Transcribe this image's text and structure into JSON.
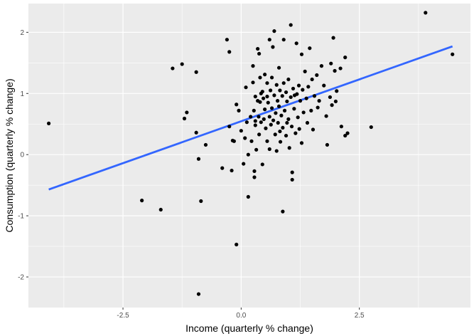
{
  "chart_data": {
    "type": "scatter",
    "xlabel": "Income (quarterly % change)",
    "ylabel": "Consumption (quarterly % change)",
    "xlim": [
      -4.5,
      4.85
    ],
    "ylim": [
      -2.5,
      2.47
    ],
    "x_ticks": [
      -2.5,
      0.0,
      2.5
    ],
    "x_tick_labels": [
      "-2.5",
      "0.0",
      "2.5"
    ],
    "y_ticks": [
      -2,
      -1,
      0,
      1,
      2
    ],
    "y_tick_labels": [
      "-2",
      "-1",
      "0",
      "1",
      "2"
    ],
    "grid": true,
    "colors": {
      "panel": "#ebebeb",
      "grid": "#ffffff",
      "points": "#000000",
      "fit_line": "#3366ff"
    },
    "fit_line": {
      "x": [
        -4.07,
        4.47
      ],
      "y": [
        -0.57,
        1.77
      ]
    },
    "points": [
      {
        "x": -4.07,
        "y": 0.51
      },
      {
        "x": -2.1,
        "y": -0.75
      },
      {
        "x": -1.7,
        "y": -0.9
      },
      {
        "x": -1.45,
        "y": 1.41
      },
      {
        "x": -1.25,
        "y": 1.48
      },
      {
        "x": -1.15,
        "y": 0.69
      },
      {
        "x": -1.2,
        "y": 0.59
      },
      {
        "x": -0.95,
        "y": 1.35
      },
      {
        "x": -0.95,
        "y": 0.36
      },
      {
        "x": -0.9,
        "y": -0.07
      },
      {
        "x": -0.85,
        "y": -0.76
      },
      {
        "x": -0.9,
        "y": -2.28
      },
      {
        "x": -0.75,
        "y": 0.16
      },
      {
        "x": -0.4,
        "y": -0.22
      },
      {
        "x": -0.3,
        "y": 1.88
      },
      {
        "x": -0.25,
        "y": 1.68
      },
      {
        "x": -0.25,
        "y": 0.46
      },
      {
        "x": -0.2,
        "y": -0.26
      },
      {
        "x": -0.18,
        "y": 0.23
      },
      {
        "x": -0.15,
        "y": 0.22
      },
      {
        "x": -0.1,
        "y": 0.82
      },
      {
        "x": -0.1,
        "y": -1.47
      },
      {
        "x": -0.05,
        "y": 0.72
      },
      {
        "x": 0.0,
        "y": 0.39
      },
      {
        "x": 0.05,
        "y": -0.15
      },
      {
        "x": 0.08,
        "y": 0.27
      },
      {
        "x": 0.1,
        "y": 1.1
      },
      {
        "x": 0.12,
        "y": 0.53
      },
      {
        "x": 0.15,
        "y": -0.0
      },
      {
        "x": 0.15,
        "y": -0.69
      },
      {
        "x": 0.2,
        "y": 0.62
      },
      {
        "x": 0.22,
        "y": 0.22
      },
      {
        "x": 0.25,
        "y": 1.45
      },
      {
        "x": 0.25,
        "y": 1.18
      },
      {
        "x": 0.27,
        "y": 0.72
      },
      {
        "x": 0.28,
        "y": -0.27
      },
      {
        "x": 0.28,
        "y": -0.37
      },
      {
        "x": 0.3,
        "y": 0.95
      },
      {
        "x": 0.3,
        "y": 0.48
      },
      {
        "x": 0.32,
        "y": 0.08
      },
      {
        "x": 0.35,
        "y": 1.73
      },
      {
        "x": 0.35,
        "y": 0.88
      },
      {
        "x": 0.37,
        "y": 0.62
      },
      {
        "x": 0.38,
        "y": 0.33
      },
      {
        "x": 0.4,
        "y": 1.26
      },
      {
        "x": 0.4,
        "y": 0.86
      },
      {
        "x": 0.42,
        "y": 0.53
      },
      {
        "x": 0.45,
        "y": 1.03
      },
      {
        "x": 0.45,
        "y": -0.16
      },
      {
        "x": 0.47,
        "y": 0.92
      },
      {
        "x": 0.48,
        "y": 0.58
      },
      {
        "x": 0.5,
        "y": 1.31
      },
      {
        "x": 0.5,
        "y": 0.74
      },
      {
        "x": 0.52,
        "y": 0.43
      },
      {
        "x": 0.55,
        "y": 1.17
      },
      {
        "x": 0.55,
        "y": 0.22
      },
      {
        "x": 0.57,
        "y": 0.85
      },
      {
        "x": 0.6,
        "y": 0.62
      },
      {
        "x": 0.6,
        "y": 0.09
      },
      {
        "x": 0.62,
        "y": 1.05
      },
      {
        "x": 0.63,
        "y": 0.49
      },
      {
        "x": 0.65,
        "y": 1.26
      },
      {
        "x": 0.65,
        "y": 0.76
      },
      {
        "x": 0.67,
        "y": 1.76
      },
      {
        "x": 0.7,
        "y": 2.02
      },
      {
        "x": 0.7,
        "y": 0.97
      },
      {
        "x": 0.72,
        "y": 0.33
      },
      {
        "x": 0.73,
        "y": 0.68
      },
      {
        "x": 0.75,
        "y": 1.14
      },
      {
        "x": 0.75,
        "y": 0.06
      },
      {
        "x": 0.77,
        "y": 0.88
      },
      {
        "x": 0.78,
        "y": 0.52
      },
      {
        "x": 0.8,
        "y": 1.42
      },
      {
        "x": 0.8,
        "y": 0.79
      },
      {
        "x": 0.82,
        "y": 1.05
      },
      {
        "x": 0.83,
        "y": 0.21
      },
      {
        "x": 0.85,
        "y": 0.64
      },
      {
        "x": 0.87,
        "y": 0.96
      },
      {
        "x": 0.88,
        "y": 0.44
      },
      {
        "x": 0.88,
        "y": -0.93
      },
      {
        "x": 0.9,
        "y": 1.88
      },
      {
        "x": 0.9,
        "y": 1.17
      },
      {
        "x": 0.92,
        "y": 0.72
      },
      {
        "x": 0.95,
        "y": 1.02
      },
      {
        "x": 0.95,
        "y": 0.31
      },
      {
        "x": 0.97,
        "y": 0.87
      },
      {
        "x": 1.0,
        "y": 1.23
      },
      {
        "x": 1.0,
        "y": 0.58
      },
      {
        "x": 1.02,
        "y": 0.11
      },
      {
        "x": 1.05,
        "y": 2.12
      },
      {
        "x": 1.05,
        "y": 0.94
      },
      {
        "x": 1.07,
        "y": 0.46
      },
      {
        "x": 1.08,
        "y": -0.29
      },
      {
        "x": 1.08,
        "y": -0.41
      },
      {
        "x": 1.1,
        "y": 1.08
      },
      {
        "x": 1.12,
        "y": 0.75
      },
      {
        "x": 1.15,
        "y": 0.35
      },
      {
        "x": 1.17,
        "y": 1.82
      },
      {
        "x": 1.18,
        "y": 0.99
      },
      {
        "x": 1.2,
        "y": 0.61
      },
      {
        "x": 1.22,
        "y": 1.13
      },
      {
        "x": 1.25,
        "y": 0.88
      },
      {
        "x": 1.28,
        "y": 1.64
      },
      {
        "x": 1.28,
        "y": 0.19
      },
      {
        "x": 1.3,
        "y": 1.06
      },
      {
        "x": 1.32,
        "y": 0.69
      },
      {
        "x": 1.35,
        "y": 1.36
      },
      {
        "x": 1.38,
        "y": 0.92
      },
      {
        "x": 1.4,
        "y": 0.52
      },
      {
        "x": 1.42,
        "y": 1.11
      },
      {
        "x": 1.45,
        "y": 1.74
      },
      {
        "x": 1.48,
        "y": 0.72
      },
      {
        "x": 1.5,
        "y": 1.23
      },
      {
        "x": 1.52,
        "y": 0.41
      },
      {
        "x": 1.55,
        "y": 0.96
      },
      {
        "x": 1.6,
        "y": 1.3
      },
      {
        "x": 1.62,
        "y": 0.77
      },
      {
        "x": 1.65,
        "y": 0.88
      },
      {
        "x": 1.7,
        "y": 1.45
      },
      {
        "x": 1.75,
        "y": 1.13
      },
      {
        "x": 1.8,
        "y": 0.63
      },
      {
        "x": 1.82,
        "y": 0.16
      },
      {
        "x": 1.88,
        "y": 0.94
      },
      {
        "x": 1.9,
        "y": 1.49
      },
      {
        "x": 1.92,
        "y": 0.81
      },
      {
        "x": 1.95,
        "y": 1.91
      },
      {
        "x": 1.98,
        "y": 1.37
      },
      {
        "x": 2.0,
        "y": 0.87
      },
      {
        "x": 2.02,
        "y": 1.04
      },
      {
        "x": 2.1,
        "y": 1.41
      },
      {
        "x": 2.12,
        "y": 0.46
      },
      {
        "x": 2.2,
        "y": 1.59
      },
      {
        "x": 2.2,
        "y": 0.31
      },
      {
        "x": 2.25,
        "y": 0.35
      },
      {
        "x": 2.75,
        "y": 0.45
      },
      {
        "x": 3.9,
        "y": 2.32
      },
      {
        "x": 4.47,
        "y": 1.64
      },
      {
        "x": 0.3,
        "y": 0.55
      },
      {
        "x": 0.42,
        "y": 1.0
      },
      {
        "x": 0.55,
        "y": 0.95
      },
      {
        "x": 0.68,
        "y": 0.56
      },
      {
        "x": 0.82,
        "y": 0.38
      },
      {
        "x": 0.97,
        "y": 0.52
      },
      {
        "x": 1.13,
        "y": 0.97
      },
      {
        "x": 1.23,
        "y": 0.42
      },
      {
        "x": 0.38,
        "y": 1.65
      },
      {
        "x": 0.6,
        "y": 1.88
      }
    ]
  }
}
